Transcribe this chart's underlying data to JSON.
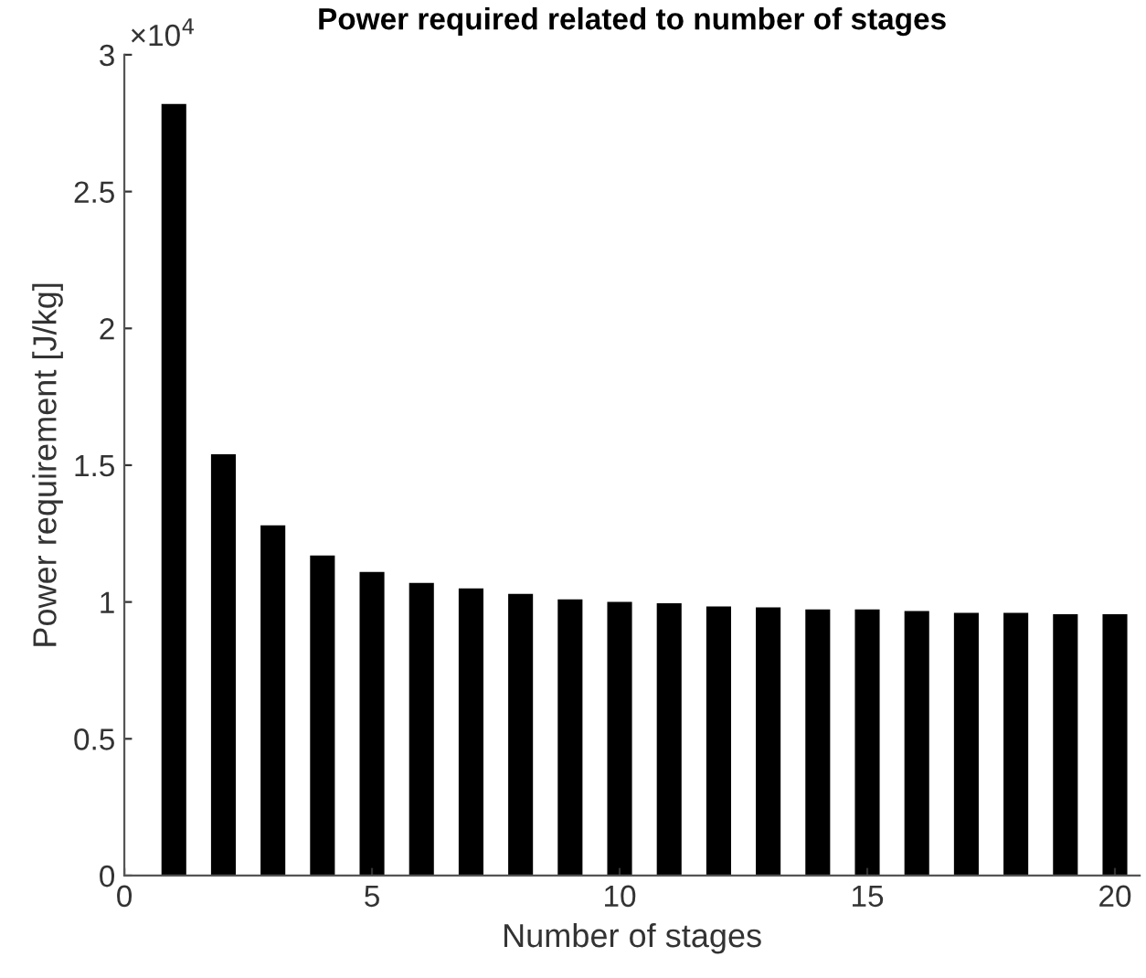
{
  "chart_data": {
    "type": "bar",
    "title": "Power required related to number of stages",
    "xlabel": "Number of stages",
    "ylabel": "Power requirement [J/kg]",
    "x": [
      1,
      2,
      3,
      4,
      5,
      6,
      7,
      8,
      9,
      10,
      11,
      12,
      13,
      14,
      15,
      16,
      17,
      18,
      19,
      20
    ],
    "values": [
      2.82,
      1.54,
      1.28,
      1.17,
      1.11,
      1.07,
      1.05,
      1.03,
      1.01,
      1.0,
      0.995,
      0.984,
      0.98,
      0.973,
      0.973,
      0.967,
      0.96,
      0.96,
      0.955,
      0.955
    ],
    "color": "#000000",
    "xlim": [
      0,
      20.5
    ],
    "xticks": [
      0,
      5,
      10,
      15,
      20
    ],
    "ylim": [
      0,
      3
    ],
    "yticks": [
      0,
      0.5,
      1,
      1.5,
      2,
      2.5,
      3
    ],
    "annotations": [
      "×10$^{4}$"
    ],
    "grid": false
  }
}
